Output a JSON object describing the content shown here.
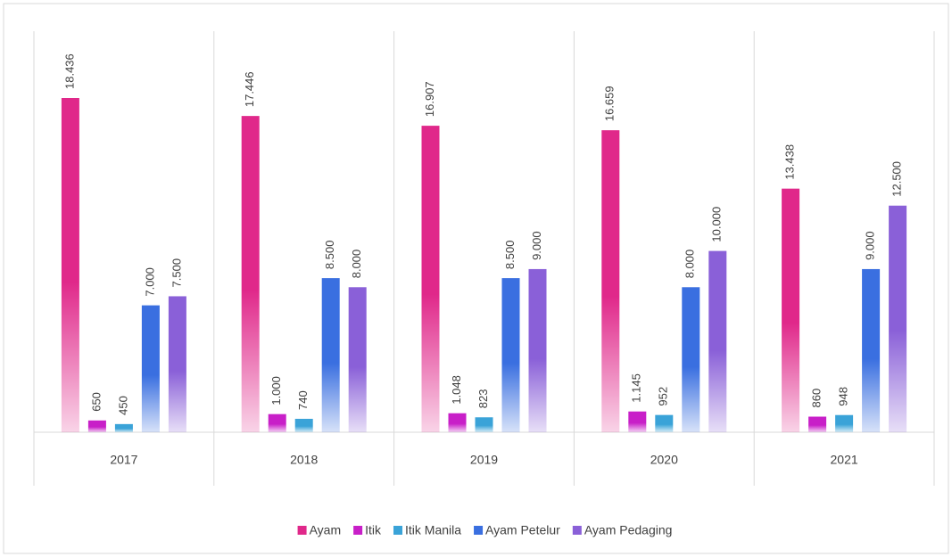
{
  "chart_data": {
    "type": "bar",
    "categories": [
      "2017",
      "2018",
      "2019",
      "2020",
      "2021"
    ],
    "series": [
      {
        "name": "Ayam",
        "color": "#e0288a",
        "values": [
          18436,
          17446,
          16907,
          16659,
          13438
        ],
        "value_labels": [
          "18.436",
          "17.446",
          "16.907",
          "16.659",
          "13.438"
        ]
      },
      {
        "name": "Itik",
        "color": "#c81fc8",
        "values": [
          650,
          1000,
          1048,
          1145,
          860
        ],
        "value_labels": [
          "650",
          "1.000",
          "1.048",
          "1.145",
          "860"
        ]
      },
      {
        "name": "Itik Manila",
        "color": "#3aa3d8",
        "values": [
          450,
          740,
          823,
          952,
          948
        ],
        "value_labels": [
          "450",
          "740",
          "823",
          "952",
          "948"
        ]
      },
      {
        "name": "Ayam Petelur",
        "color": "#3a6fe0",
        "values": [
          7000,
          8500,
          8500,
          8000,
          9000
        ],
        "value_labels": [
          "7.000",
          "8.500",
          "8.500",
          "8.000",
          "9.000"
        ]
      },
      {
        "name": "Ayam Pedaging",
        "color": "#8a60d8",
        "values": [
          7500,
          8000,
          9000,
          10000,
          12500
        ],
        "value_labels": [
          "7.500",
          "8.000",
          "9.000",
          "10.000",
          "12.500"
        ]
      }
    ],
    "legend": "bottom"
  }
}
